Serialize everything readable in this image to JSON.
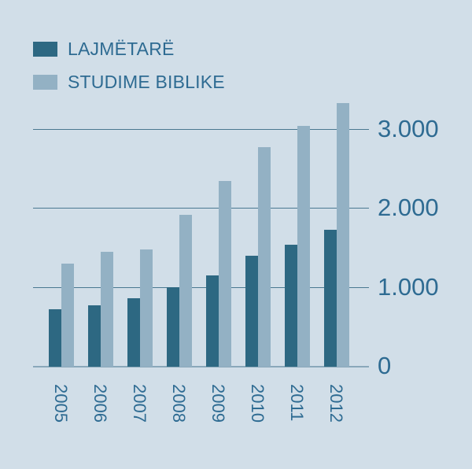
{
  "colors": {
    "background": "#d1dee8",
    "series_dark": "#2d6882",
    "series_light": "#93b1c4",
    "text": "#2e6b92",
    "grid": "#4a7891"
  },
  "legend": [
    {
      "label": "LAJMËTARË",
      "color": "#2d6882"
    },
    {
      "label": "STUDIME BIBLIKE",
      "color": "#93b1c4"
    }
  ],
  "y_ticks": [
    "0",
    "1.000",
    "2.000",
    "3.000"
  ],
  "chart_data": {
    "type": "bar",
    "title": "",
    "xlabel": "",
    "ylabel": "",
    "categories": [
      "2005",
      "2006",
      "2007",
      "2008",
      "2009",
      "2010",
      "2011",
      "2012"
    ],
    "series": [
      {
        "name": "LAJMËTARË",
        "values": [
          730,
          780,
          870,
          1010,
          1160,
          1410,
          1550,
          1730
        ]
      },
      {
        "name": "STUDIME BIBLIKE",
        "values": [
          1310,
          1460,
          1490,
          1920,
          2350,
          2780,
          3050,
          3340
        ]
      }
    ],
    "ylim": [
      0,
      3000
    ],
    "y_ticks": [
      0,
      1000,
      2000,
      3000
    ],
    "y_tick_labels": [
      "0",
      "1.000",
      "2.000",
      "3.000"
    ],
    "grid": true,
    "y_axis_position": "right",
    "legend_position": "top-left"
  }
}
